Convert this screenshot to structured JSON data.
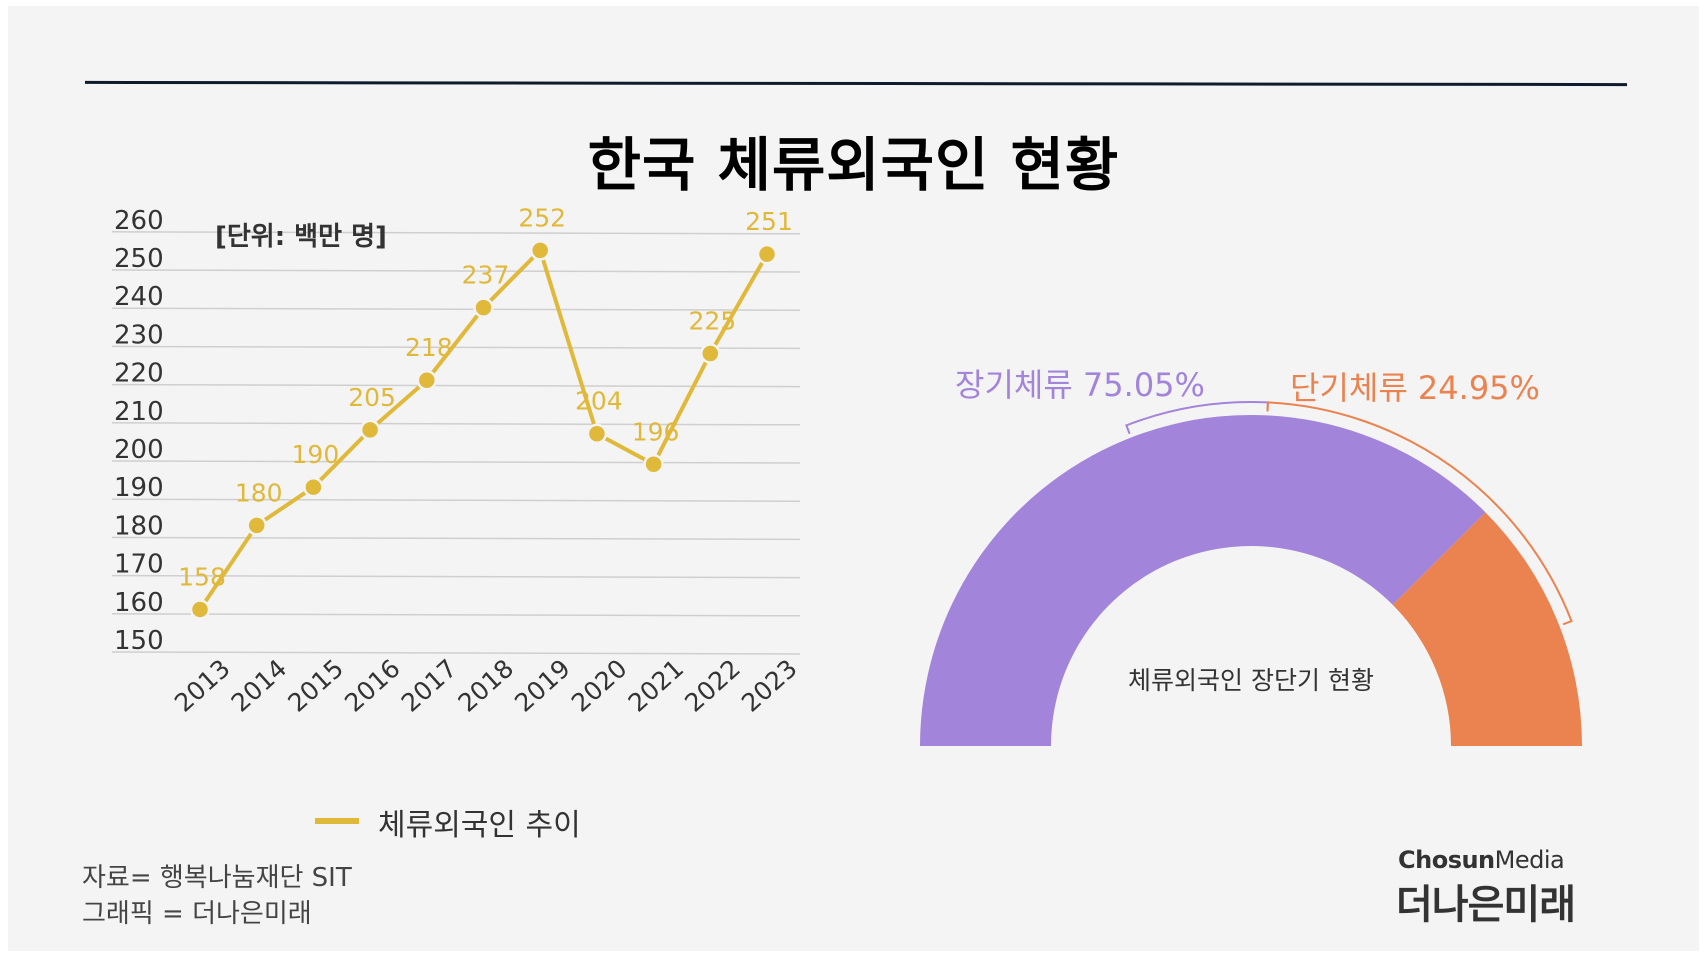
{
  "page_title": "한국 체류외국인 현황",
  "unit_label": "[단위: 백만 명]",
  "footer": {
    "source": "자료= 행복나눔재단 SIT",
    "credit": "그래픽 = 더나은미래"
  },
  "brand": {
    "top_bold": "Chosun",
    "top_light": "Media",
    "bottom": "더나은미래"
  },
  "colors": {
    "line": "#e0b93a",
    "long_term": "#a384db",
    "short_term": "#ea8350"
  },
  "chart_data": [
    {
      "type": "line",
      "x": [
        "2013",
        "2014",
        "2015",
        "2016",
        "2017",
        "2018",
        "2019",
        "2020",
        "2021",
        "2022",
        "2023"
      ],
      "series": [
        {
          "name": "체류외국인 추이",
          "values": [
            158,
            180,
            190,
            205,
            218,
            237,
            252,
            204,
            196,
            225,
            251
          ]
        }
      ],
      "data_labels": [
        "158",
        "180",
        "190",
        "205",
        "218",
        "237",
        "252",
        "204",
        "196",
        "225",
        "251"
      ],
      "ylim": [
        150,
        260
      ],
      "y_ticks": [
        "150",
        "160",
        "170",
        "180",
        "190",
        "200",
        "210",
        "220",
        "230",
        "240",
        "250",
        "260"
      ],
      "grid": true,
      "legend": "bottom"
    },
    {
      "type": "pie",
      "style": "half-donut",
      "title": "체류외국인 장단기 현황",
      "slices": [
        {
          "name": "장기체류",
          "value": 75.05,
          "label": "장기체류 75.05%"
        },
        {
          "name": "단기체류",
          "value": 24.95,
          "label": "단기체류 24.95%"
        }
      ]
    }
  ]
}
